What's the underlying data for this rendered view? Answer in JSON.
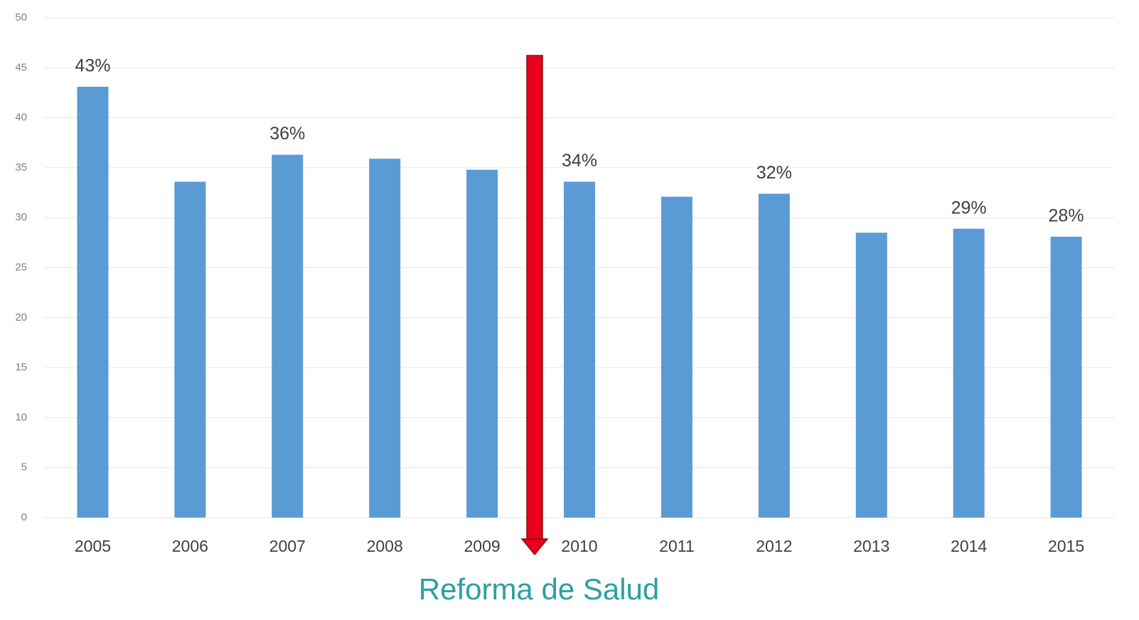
{
  "chart_data": {
    "type": "bar",
    "categories": [
      "2005",
      "2006",
      "2007",
      "2008",
      "2009",
      "2010",
      "2011",
      "2012",
      "2013",
      "2014",
      "2015"
    ],
    "values": [
      43.1,
      33.6,
      36.3,
      35.9,
      34.8,
      33.6,
      32.1,
      32.4,
      28.5,
      28.9,
      28.1
    ],
    "value_labels": [
      "43%",
      null,
      "36%",
      null,
      null,
      "34%",
      null,
      "32%",
      null,
      "29%",
      "28%"
    ],
    "color": "#5b9bd5",
    "ylim": [
      0,
      50
    ],
    "yticks": [
      0,
      5,
      10,
      15,
      20,
      25,
      30,
      35,
      40,
      45,
      50
    ],
    "grid": true,
    "annotation": "Reforma de Salud"
  }
}
